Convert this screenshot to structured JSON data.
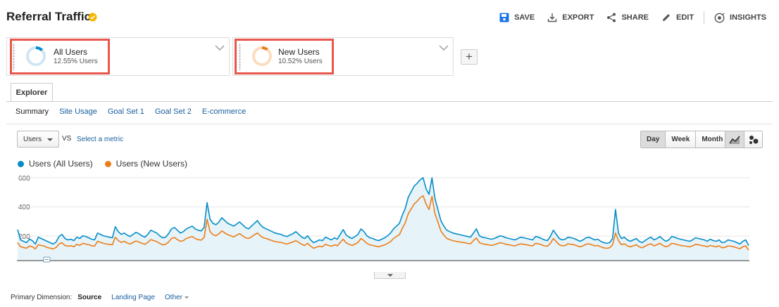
{
  "report": {
    "title": "Referral Traffic",
    "verified_icon": "verified-check-icon",
    "badge_color": "#f5b400"
  },
  "toolbar": {
    "save_label": "SAVE",
    "export_label": "EXPORT",
    "share_label": "SHARE",
    "edit_label": "EDIT",
    "insights_label": "INSIGHTS",
    "save_icon_color": "#1a73e8"
  },
  "segments": [
    {
      "name": "All Users",
      "pct_label": "12.55% Users",
      "color": "#058dc7",
      "ring_fraction": 0.1255
    },
    {
      "name": "New Users",
      "pct_label": "10.52% Users",
      "color": "#ed7e17",
      "ring_fraction": 0.1052
    }
  ],
  "add_segment_label": "+",
  "tabs": {
    "explorer": "Explorer"
  },
  "subnav": {
    "summary": "Summary",
    "site_usage": "Site Usage",
    "goal_set_1": "Goal Set 1",
    "goal_set_2": "Goal Set 2",
    "ecommerce": "E-commerce"
  },
  "controls": {
    "metric_value": "Users",
    "vs": "VS",
    "select_metric": "Select a metric",
    "periods": [
      "Day",
      "Week",
      "Month"
    ],
    "active_period": "Day"
  },
  "legend": [
    "Users (All Users)",
    "Users (New Users)"
  ],
  "chart_data": {
    "type": "line",
    "ylim": [
      0,
      600
    ],
    "yticks": [
      "600",
      "400",
      "200"
    ],
    "series": [
      {
        "name": "Users (All Users)",
        "color": "#058dc7",
        "values": [
          225,
          150,
          140,
          130,
          155,
          145,
          120,
          170,
          160,
          150,
          140,
          130,
          120,
          135,
          175,
          190,
          160,
          150,
          155,
          145,
          170,
          160,
          180,
          175,
          165,
          155,
          150,
          200,
          190,
          180,
          175,
          170,
          165,
          245,
          210,
          190,
          200,
          185,
          175,
          190,
          205,
          195,
          180,
          170,
          190,
          220,
          210,
          200,
          180,
          165,
          170,
          195,
          230,
          240,
          220,
          200,
          210,
          230,
          240,
          250,
          230,
          220,
          215,
          240,
          420,
          300,
          270,
          260,
          280,
          310,
          290,
          270,
          260,
          250,
          265,
          280,
          260,
          240,
          230,
          250,
          270,
          290,
          260,
          240,
          230,
          220,
          210,
          200,
          195,
          190,
          180,
          175,
          185,
          195,
          210,
          190,
          170,
          160,
          180,
          150,
          130,
          140,
          150,
          145,
          170,
          160,
          150,
          165,
          155,
          190,
          225,
          185,
          170,
          160,
          175,
          190,
          230,
          210,
          180,
          165,
          160,
          150,
          145,
          155,
          165,
          180,
          200,
          230,
          250,
          270,
          330,
          380,
          460,
          500,
          540,
          560,
          585,
          600,
          520,
          480,
          600,
          450,
          370,
          290,
          250,
          220,
          210,
          200,
          195,
          190,
          185,
          180,
          175,
          170,
          200,
          230,
          180,
          170,
          165,
          160,
          155,
          160,
          170,
          180,
          175,
          165,
          160,
          155,
          150,
          160,
          170,
          165,
          160,
          155,
          150,
          175,
          170,
          160,
          150,
          145,
          175,
          220,
          190,
          160,
          150,
          155,
          170,
          165,
          160,
          150,
          140,
          150,
          165,
          170,
          160,
          150,
          155,
          140,
          130,
          125,
          130,
          160,
          370,
          200,
          160,
          170,
          150,
          140,
          150,
          160,
          140,
          130,
          145,
          160,
          170,
          150,
          160,
          175,
          155,
          140,
          150,
          175,
          170,
          160,
          155,
          150,
          145,
          140,
          150,
          165,
          160,
          155,
          150,
          140,
          155,
          145,
          140,
          150,
          130,
          135,
          150,
          145,
          140,
          130,
          120,
          140,
          150,
          110
        ]
      },
      {
        "name": "Users (New Users)",
        "color": "#ed7e17",
        "values": [
          130,
          100,
          95,
          90,
          105,
          100,
          85,
          115,
          110,
          105,
          95,
          90,
          85,
          95,
          120,
          130,
          110,
          105,
          108,
          100,
          118,
          110,
          125,
          120,
          115,
          108,
          105,
          140,
          132,
          125,
          120,
          118,
          115,
          170,
          145,
          132,
          140,
          128,
          120,
          132,
          142,
          135,
          125,
          118,
          132,
          152,
          145,
          138,
          125,
          114,
          118,
          135,
          160,
          168,
          152,
          140,
          145,
          160,
          168,
          175,
          160,
          152,
          148,
          168,
          300,
          210,
          188,
          180,
          195,
          215,
          200,
          188,
          180,
          172,
          184,
          195,
          180,
          165,
          160,
          172,
          188,
          200,
          180,
          165,
          160,
          152,
          145,
          138,
          135,
          132,
          125,
          120,
          128,
          135,
          145,
          132,
          118,
          110,
          125,
          104,
          90,
          97,
          104,
          100,
          118,
          110,
          104,
          114,
          108,
          132,
          155,
          128,
          118,
          110,
          120,
          132,
          160,
          145,
          125,
          114,
          110,
          104,
          100,
          108,
          114,
          125,
          138,
          160,
          175,
          188,
          235,
          275,
          340,
          375,
          410,
          430,
          455,
          470,
          410,
          370,
          465,
          340,
          280,
          215,
          185,
          160,
          152,
          145,
          140,
          137,
          133,
          130,
          125,
          122,
          145,
          165,
          130,
          122,
          118,
          115,
          110,
          115,
          122,
          130,
          125,
          118,
          115,
          110,
          107,
          115,
          122,
          118,
          115,
          110,
          107,
          125,
          122,
          115,
          107,
          104,
          125,
          160,
          138,
          115,
          107,
          110,
          122,
          118,
          115,
          107,
          100,
          107,
          118,
          122,
          115,
          107,
          110,
          100,
          93,
          89,
          93,
          115,
          200,
          145,
          115,
          122,
          107,
          100,
          107,
          115,
          100,
          93,
          104,
          115,
          122,
          107,
          115,
          125,
          110,
          100,
          107,
          125,
          122,
          115,
          110,
          107,
          104,
          100,
          107,
          118,
          115,
          110,
          107,
          100,
          110,
          104,
          100,
          107,
          93,
          96,
          107,
          104,
          100,
          93,
          86,
          100,
          107,
          75
        ]
      }
    ]
  },
  "primary_dimension": {
    "label": "Primary Dimension:",
    "current": "Source",
    "landing_page": "Landing Page",
    "other": "Other"
  }
}
